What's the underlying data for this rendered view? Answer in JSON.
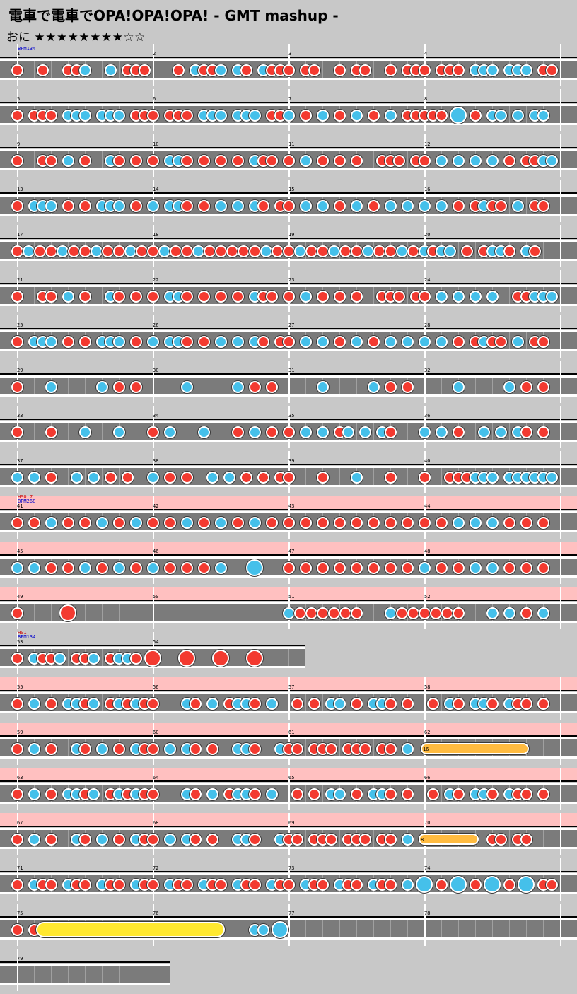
{
  "header": {
    "title": "電車で電車でOPA!OPA!OPA! - GMT mashup -",
    "difficulty": "おに",
    "stars": "★★★★★★★★☆☆"
  },
  "rows": [
    {
      "measures": [
        "1",
        "2",
        "3",
        "4"
      ],
      "annots": [
        {
          "text": "BPM134",
          "color": "#0000cc"
        }
      ],
      "notes": "r24 r60 r96 r108 b120 b156 r180 r192 r204 r252 b276 r288 r300 b312 b336 r348 b372 r384 r396 r408 r432 r444 r480 r504 r516 r552 r576 r588 r600 r624 r636 r648 b672 b684 b696 b720 b732 b744 r768 r780"
    },
    {
      "measures": [
        "5",
        "6",
        "7",
        "8"
      ],
      "notes": "r24 r48 r60 r72 b96 b108 b120 b144 b156 b168 r192 r204 r216 r240 r252 r264 b288 b300 b312 b336 b348 b360 r384 r396 b408 r432 b456 r480 b504 r528 b552 r576 r588 r600 r612 r624 B648 r672 b696 b708 b732 b756 b768"
    },
    {
      "measures": [
        "9",
        "10",
        "11",
        "12"
      ],
      "notes": "r24 r60 r72 b96 r120 b156 r168 r192 r216 b240 b252 r264 r288 r312 r336 b360 r372 r384 r408 b432 r456 r480 r504 r540 r552 r564 r588 r600 b624 b648 b672 b696 r720 r744 r756 b768 b780"
    },
    {
      "measures": [
        "13",
        "14",
        "15",
        "16"
      ],
      "notes": "r24 b48 b60 b72 r96 r120 b144 b156 b168 r192 b216 b240 b252 r264 r288 b312 b336 b360 r372 r396 r408 b432 b456 r480 b504 r528 b552 b576 b600 b624 r648 r672 b684 r696 r708 b732 r756 r768"
    },
    {
      "measures": [
        "17",
        "18",
        "19",
        "20"
      ],
      "notes": "r24 b40 r56 r72 b88 r104 r120 b136 r152 r168 b184 r200 r216 b232 r248 r264 b280 r296 r312 r328 r344 r360 b376 r392 r408 b424 r440 r456 b472 r488 r504 b520 r536 r552 b568 r584 b600 r612 b624 b636 r660 r684 b696 b708 r720 b744 r756"
    },
    {
      "measures": [
        "21",
        "22",
        "23",
        "24"
      ],
      "notes": "r24 r60 r72 b96 r120 b156 r168 r192 r216 b240 b252 r264 r288 r312 r336 b360 r372 r384 r408 b432 r456 r480 r504 r540 r552 r564 r588 r600 b624 b648 b672 b696 r732 r744 b756 b768 b780"
    },
    {
      "measures": [
        "25",
        "26",
        "27",
        "28"
      ],
      "notes": "r24 b48 b60 b72 r96 r120 b144 b156 b168 r192 b216 b240 b252 r264 r288 b312 b336 b360 r372 r396 r408 b432 b456 r480 b504 r528 b552 b576 b600 b624 r648 r672 b684 r696 r708 b732 r756 r768"
    },
    {
      "measures": [
        "29",
        "30",
        "31",
        "32"
      ],
      "notes": "r24 b72 b144 r168 r192 b264 b336 r360 r384 b456 b528 r552 r576 b648 b720 r744 r768"
    },
    {
      "measures": [
        "33",
        "34",
        "35",
        "36"
      ],
      "notes": "r24 r72 b120 b168 r216 b240 b288 r336 b360 r384 r408 b432 b456 r480 b492 b516 b540 r552 b600 b624 r648 b684 b708 b732 r744 r768"
    },
    {
      "measures": [
        "37",
        "38",
        "39",
        "40"
      ],
      "notes": "b24 b48 r72 b108 b132 r156 r180 b216 r240 r264 b300 b324 r348 r372 r396 r408 r456 b504 r552 r600 r636 r648 r660 b672 b684 b696 b720 b732 b744 b756 b768 b780"
    },
    {
      "measures": [
        "41",
        "42",
        "43",
        "44"
      ],
      "pink": true,
      "annots": [
        {
          "text": "HS0.7",
          "color": "#cc0000"
        },
        {
          "text": "BPM268",
          "color": "#0000cc"
        }
      ],
      "notes": "r24 r48 b72 r96 r120 b144 r168 b192 r216 r240 b264 r288 b312 r336 b360 r384 r408 r432 r456 r480 r504 r528 r552 r576 r600 r624 b648 b672 b696 r720 r744 r768"
    },
    {
      "measures": [
        "45",
        "46",
        "47",
        "48"
      ],
      "pink": true,
      "notes": "b24 b48 r72 r96 b120 r144 b168 r192 b216 r240 r264 r288 b312 B360 r408 r432 r456 r480 r504 r528 r552 r576 b600 r624 r648 b672 b696 r720 r744 r768"
    },
    {
      "measures": [
        "49",
        "50",
        "51",
        "52"
      ],
      "pink": true,
      "notes": "r24 R96 b408 r424 r440 r456 r472 r488 r504 b552 r568 r584 r600 r616 r632 r648 b696 b720 r744 b768"
    },
    {
      "measures": [
        "53",
        "54"
      ],
      "annots": [
        {
          "text": "HS1",
          "color": "#cc0000"
        },
        {
          "text": "BPM134",
          "color": "#0000cc"
        }
      ],
      "width": 432,
      "notes": "r24 b48 r60 r72 b84 r108 r120 b132 r156 b168 b180 r192 R216 R264 R312 R360"
    },
    {
      "measures": [
        "55",
        "56",
        "57",
        "58"
      ],
      "pink": true,
      "notes": "r24 b48 r72 b96 b108 r120 b132 r156 b168 r180 b192 r204 r216 b264 r276 b300 r324 b336 b348 r360 b384 r420 r444 b468 b480 r504 b528 b540 r552 r576 r612 b636 r648 b672 b684 r696 b720 r732 r744 r768"
    },
    {
      "measures": [
        "59",
        "60",
        "61",
        "62"
      ],
      "pink": true,
      "notes": "r24 b48 r72 b108 r120 b144 r168 b192 r204 r216 b240 b264 r276 r300 b336 b348 r360 b396 r408 r420 r444 r456 r468 r492 r504 r516 r540 r552 b576",
      "rolls": [
        {
          "start": 603,
          "end": 748,
          "type": "drum",
          "count": "16"
        }
      ]
    },
    {
      "measures": [
        "63",
        "64",
        "65",
        "66"
      ],
      "pink": true,
      "notes": "r24 b48 r72 b96 b108 r120 b132 r156 b168 r180 b192 r204 r216 b264 r276 b300 r324 b336 b348 r360 b384 r420 r444 b468 b480 r504 b528 b540 r552 r576 r612 b636 r648 b672 b684 r696 b720 r732 r744 r768"
    },
    {
      "measures": [
        "67",
        "68",
        "69",
        "70"
      ],
      "pink": true,
      "notes": "r24 b48 r72 b108 r120 b144 r168 b192 r204 r216 b240 b264 r276 r300 b336 b348 r360 b396 r408 r420 r444 r456 r468 r492 r504 r516 r540 r552 b576",
      "rolls": [
        {
          "start": 600,
          "end": 677,
          "type": "drum",
          "count": "8"
        }
      ],
      "notes2": "r696 r708 r732 r744"
    },
    {
      "measures": [
        "71",
        "72",
        "73",
        "74"
      ],
      "notes": "r24 b48 r60 r72 b96 r108 r120 b144 r156 r168 b192 r204 r216 b240 r252 r264 b288 r300 r312 b336 r348 r360 b384 r396 r408 b432 r444 r456 b480 r492 r504 b528 r540 r552 b576 B600 r624 B648 r672 B696 r720 B744 r768 r780"
    },
    {
      "measures": [
        "75",
        "76",
        "77",
        "78"
      ],
      "notes": "r24 r48 b360 b372 B396",
      "rolls": [
        {
          "start": 62,
          "end": 318,
          "type": "big-drum",
          "count": ""
        }
      ]
    },
    {
      "measures": [
        "79"
      ],
      "width": 240,
      "notes": ""
    }
  ]
}
